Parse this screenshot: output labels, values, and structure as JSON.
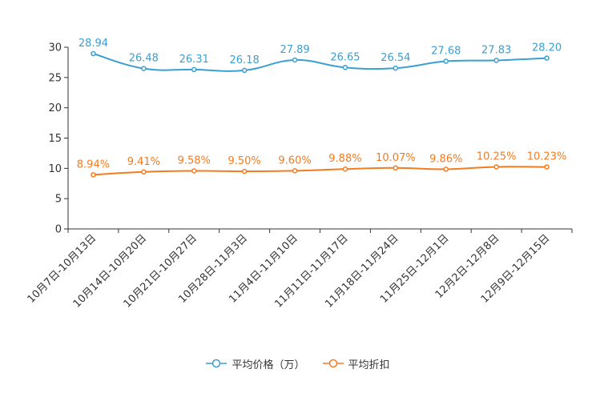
{
  "chart_data": {
    "type": "line",
    "categories": [
      "10月7日-10月13日",
      "10月14日-10月20日",
      "10月21日-10月27日",
      "10月28日-11月3日",
      "11月4日-11月10日",
      "11月11日-11月17日",
      "11月18日-11月24日",
      "11月25日-12月1日",
      "12月2日-12月8日",
      "12月9日-12月15日"
    ],
    "ylim": [
      0,
      30
    ],
    "yticks": [
      0,
      5,
      10,
      15,
      20,
      25,
      30
    ],
    "series": [
      {
        "name": "平均价格（万）",
        "color": "#3a9fd1",
        "values": [
          28.94,
          26.48,
          26.31,
          26.18,
          27.89,
          26.65,
          26.54,
          27.68,
          27.83,
          28.2
        ],
        "labels": [
          "28.94",
          "26.48",
          "26.31",
          "26.18",
          "27.89",
          "26.65",
          "26.54",
          "27.68",
          "27.83",
          "28.20"
        ]
      },
      {
        "name": "平均折扣",
        "color": "#f47b20",
        "values": [
          8.94,
          9.41,
          9.58,
          9.5,
          9.6,
          9.88,
          10.07,
          9.86,
          10.25,
          10.23
        ],
        "labels": [
          "8.94%",
          "9.41%",
          "9.58%",
          "9.50%",
          "9.60%",
          "9.88%",
          "10.07%",
          "9.86%",
          "10.25%",
          "10.23%"
        ]
      }
    ]
  }
}
